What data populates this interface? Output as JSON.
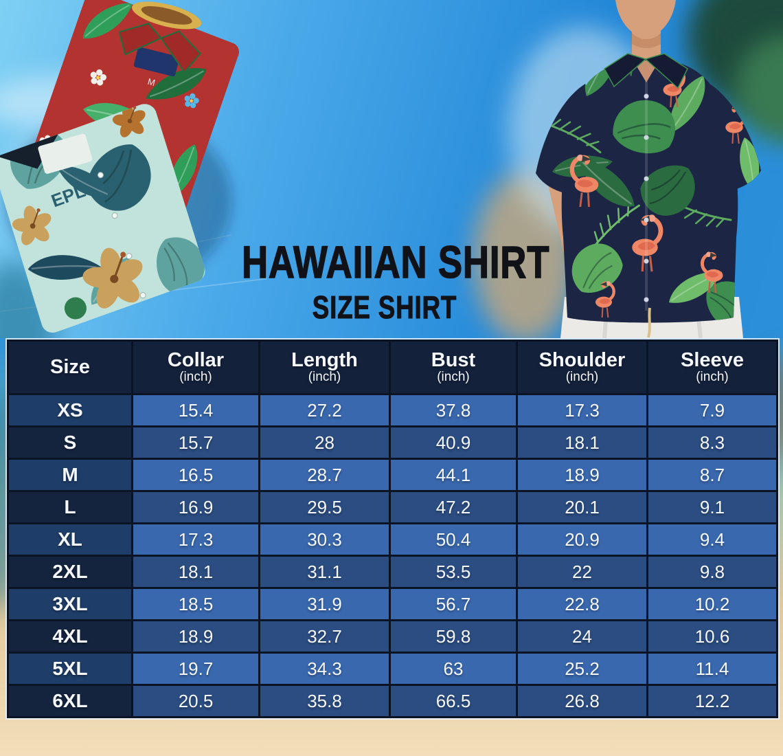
{
  "hero": {
    "title_line1": "HAWAIIAN SHIRT",
    "title_line2": "SIZE SHIRT",
    "red_shirt_tag": "M",
    "teal_shirt_print_text": "EPL"
  },
  "size_table": {
    "columns": [
      {
        "label": "Size",
        "sub": ""
      },
      {
        "label": "Collar",
        "sub": "(inch)"
      },
      {
        "label": "Length",
        "sub": "(inch)"
      },
      {
        "label": "Bust",
        "sub": "(inch)"
      },
      {
        "label": "Shoulder",
        "sub": "(inch)"
      },
      {
        "label": "Sleeve",
        "sub": "(inch)"
      }
    ],
    "rows": [
      {
        "size": "XS",
        "values": [
          "15.4",
          "27.2",
          "37.8",
          "17.3",
          "7.9"
        ]
      },
      {
        "size": "S",
        "values": [
          "15.7",
          "28",
          "40.9",
          "18.1",
          "8.3"
        ]
      },
      {
        "size": "M",
        "values": [
          "16.5",
          "28.7",
          "44.1",
          "18.9",
          "8.7"
        ]
      },
      {
        "size": "L",
        "values": [
          "16.9",
          "29.5",
          "47.2",
          "20.1",
          "9.1"
        ]
      },
      {
        "size": "XL",
        "values": [
          "17.3",
          "30.3",
          "50.4",
          "20.9",
          "9.4"
        ]
      },
      {
        "size": "2XL",
        "values": [
          "18.1",
          "31.1",
          "53.5",
          "22",
          "9.8"
        ]
      },
      {
        "size": "3XL",
        "values": [
          "18.5",
          "31.9",
          "56.7",
          "22.8",
          "10.2"
        ]
      },
      {
        "size": "4XL",
        "values": [
          "18.9",
          "32.7",
          "59.8",
          "24",
          "10.6"
        ]
      },
      {
        "size": "5XL",
        "values": [
          "19.7",
          "34.3",
          "63",
          "25.2",
          "11.4"
        ]
      },
      {
        "size": "6XL",
        "values": [
          "20.5",
          "35.8",
          "66.5",
          "26.8",
          "12.2"
        ]
      }
    ]
  },
  "colors": {
    "title_text": "#101218",
    "header_bg": "#14213b",
    "size_col_odd": "#1e3d68",
    "size_col_even": "#14243f",
    "row_odd": "#3a68ae",
    "row_even": "#2c4d82",
    "border": "#0a1425",
    "sky": "#3c9de2",
    "sand": "#eed7ab",
    "shirt_navy": "#1c2544",
    "shirt_red": "#b23330",
    "shirt_teal": "#c2e2dc",
    "flamingo": "#ef8767",
    "leaf_green": "#3e8e50"
  },
  "chart_data": {
    "type": "table",
    "title": "HAWAIIAN SHIRT SIZE SHIRT",
    "columns": [
      "Size",
      "Collar (inch)",
      "Length (inch)",
      "Bust (inch)",
      "Shoulder (inch)",
      "Sleeve (inch)"
    ],
    "rows": [
      [
        "XS",
        15.4,
        27.2,
        37.8,
        17.3,
        7.9
      ],
      [
        "S",
        15.7,
        28,
        40.9,
        18.1,
        8.3
      ],
      [
        "M",
        16.5,
        28.7,
        44.1,
        18.9,
        8.7
      ],
      [
        "L",
        16.9,
        29.5,
        47.2,
        20.1,
        9.1
      ],
      [
        "XL",
        17.3,
        30.3,
        50.4,
        20.9,
        9.4
      ],
      [
        "2XL",
        18.1,
        31.1,
        53.5,
        22,
        9.8
      ],
      [
        "3XL",
        18.5,
        31.9,
        56.7,
        22.8,
        10.2
      ],
      [
        "4XL",
        18.9,
        32.7,
        59.8,
        24,
        10.6
      ],
      [
        "5XL",
        19.7,
        34.3,
        63,
        25.2,
        11.4
      ],
      [
        "6XL",
        20.5,
        35.8,
        66.5,
        26.8,
        12.2
      ]
    ]
  }
}
